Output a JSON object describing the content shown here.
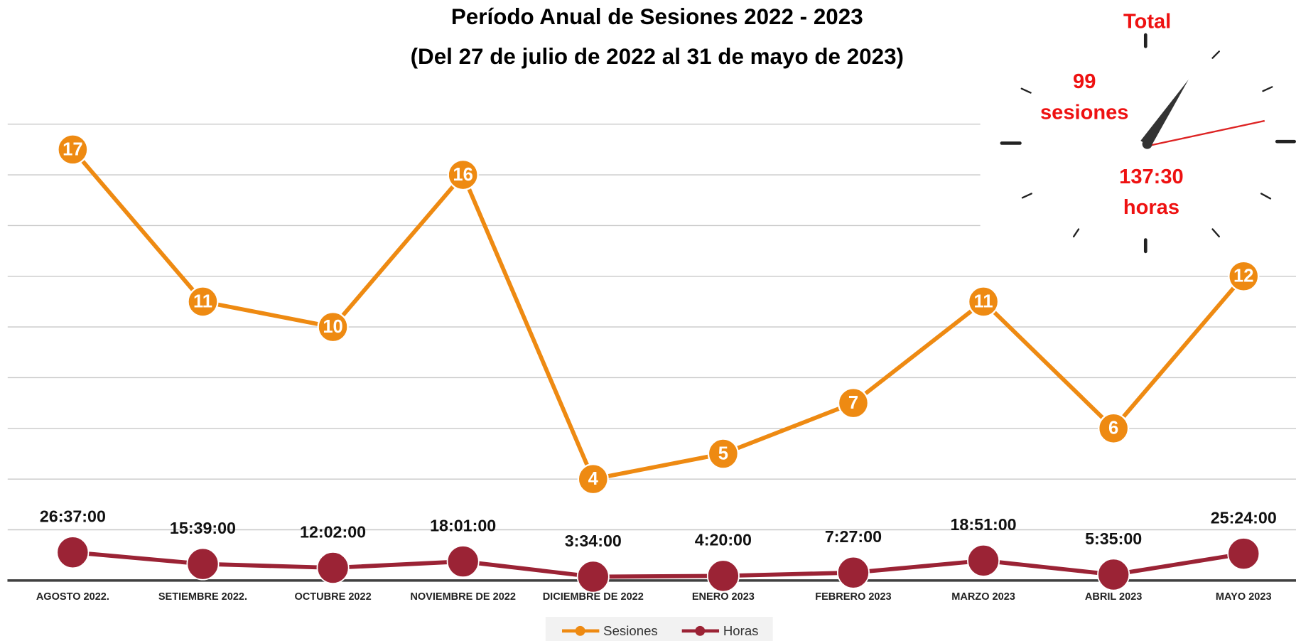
{
  "chart_data": {
    "type": "line",
    "title": "Período Anual de Sesiones 2022 - 2023",
    "subtitle": "(Del 27 de julio de 2022 al 31 de mayo de 2023)",
    "categories": [
      "AGOSTO 2022.",
      "SETIEMBRE 2022.",
      "OCTUBRE 2022",
      "NOVIEMBRE DE 2022",
      "DICIEMBRE DE 2022",
      "ENERO 2023",
      "FEBRERO 2023",
      "MARZO 2023",
      "ABRIL 2023",
      "MAYO 2023"
    ],
    "series": [
      {
        "name": "Sesiones",
        "color": "#ee8a12",
        "values": [
          17,
          11,
          10,
          16,
          4,
          5,
          7,
          11,
          6,
          12
        ]
      },
      {
        "name": "Horas",
        "color": "#9b2335",
        "values": [
          1.109,
          0.652,
          0.501,
          0.751,
          0.149,
          0.181,
          0.31,
          0.785,
          0.233,
          1.058
        ],
        "value_labels": [
          "26:37:00",
          "15:39:00",
          "12:02:00",
          "18:01:00",
          "3:34:00",
          "4:20:00",
          "7:27:00",
          "18:51:00",
          "5:35:00",
          "25:24:00"
        ]
      }
    ],
    "ylim": [
      0,
      18
    ],
    "yticks": [
      2,
      4,
      6,
      8,
      10,
      12,
      14,
      16,
      18
    ],
    "grid": true,
    "legend": "bottom",
    "total": {
      "title": "Total",
      "sessions": "99",
      "sessions_label": "sesiones",
      "hours": "137:30",
      "hours_label": "horas"
    }
  }
}
